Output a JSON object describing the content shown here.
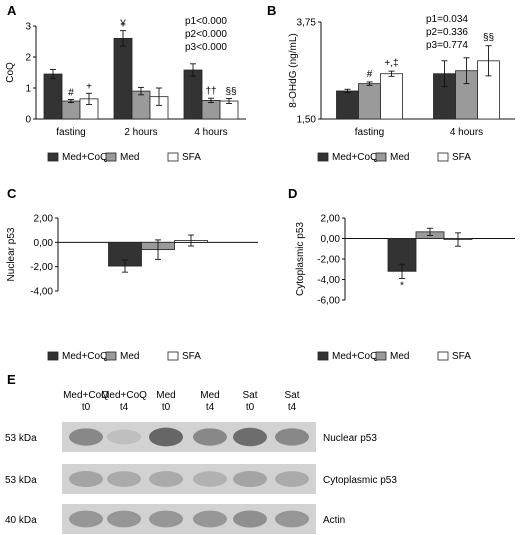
{
  "figure": {
    "letters": {
      "A": "A",
      "B": "B",
      "C": "C",
      "D": "D",
      "E": "E"
    }
  },
  "legend_labels": [
    "Med+CoQ",
    "Med",
    "SFA"
  ],
  "colors": {
    "series": [
      "#333333",
      "#9a9a9a",
      "#ffffff"
    ],
    "stroke": "#222222"
  },
  "chart_data": [
    {
      "panel": "A",
      "type": "bar",
      "categories": [
        "fasting",
        "2 hours",
        "4 hours"
      ],
      "ylabel": "CoQ",
      "ylim": [
        0,
        3
      ],
      "yticks": [
        "0",
        "1",
        "2",
        "3"
      ],
      "series": [
        {
          "name": "Med+CoQ",
          "values": [
            1.45,
            2.6,
            1.58
          ],
          "errors": [
            0.15,
            0.25,
            0.2
          ]
        },
        {
          "name": "Med",
          "values": [
            0.58,
            0.9,
            0.6
          ],
          "errors": [
            0.05,
            0.12,
            0.07
          ]
        },
        {
          "name": "SFA",
          "values": [
            0.65,
            0.72,
            0.58
          ],
          "errors": [
            0.18,
            0.28,
            0.08
          ]
        }
      ],
      "annotations": [
        "#",
        "+",
        "¥",
        "††",
        "§§"
      ],
      "stats": [
        "p1<0.000",
        "p2<0.000",
        "p3<0.000"
      ],
      "grid": false,
      "legend": "bottom"
    },
    {
      "panel": "B",
      "type": "bar",
      "categories": [
        "fasting",
        "4 hours"
      ],
      "ylabel": "8-OHdG (ng/mL)",
      "ylim": [
        1.5,
        3.75
      ],
      "yticks": [
        "1,50",
        "3,75"
      ],
      "series": [
        {
          "name": "Med+CoQ",
          "values": [
            2.15,
            2.55
          ],
          "errors": [
            0.04,
            0.3
          ]
        },
        {
          "name": "Med",
          "values": [
            2.32,
            2.62
          ],
          "errors": [
            0.04,
            0.3
          ]
        },
        {
          "name": "SFA",
          "values": [
            2.55,
            2.85
          ],
          "errors": [
            0.06,
            0.35
          ]
        }
      ],
      "annotations": [
        "#",
        "+,‡",
        "§§"
      ],
      "stats": [
        "p1=0.034",
        "p2=0.336",
        "p3=0.774"
      ],
      "grid": false,
      "legend": "bottom"
    },
    {
      "panel": "C",
      "type": "bar",
      "categories": [
        ""
      ],
      "ylabel": "Nuclear p53",
      "ylim": [
        -4,
        2
      ],
      "yticks": [
        "2,00",
        "0,00",
        "-2,00",
        "-4,00"
      ],
      "series": [
        {
          "name": "Med+CoQ",
          "values": [
            -1.95
          ],
          "errors": [
            0.5
          ]
        },
        {
          "name": "Med",
          "values": [
            -0.6
          ],
          "errors": [
            0.8
          ]
        },
        {
          "name": "SFA",
          "values": [
            0.15
          ],
          "errors": [
            0.45
          ]
        }
      ],
      "annotations": [],
      "grid": false,
      "legend": "bottom"
    },
    {
      "panel": "D",
      "type": "bar",
      "categories": [
        ""
      ],
      "ylabel": "Cytoplasmic p53",
      "ylim": [
        -6,
        2
      ],
      "yticks": [
        "2,00",
        "0,00",
        "-2,00",
        "-4,00",
        "-6,00"
      ],
      "series": [
        {
          "name": "Med+CoQ",
          "values": [
            -3.2
          ],
          "errors": [
            0.7
          ]
        },
        {
          "name": "Med",
          "values": [
            0.65
          ],
          "errors": [
            0.35
          ]
        },
        {
          "name": "SFA",
          "values": [
            -0.1
          ],
          "errors": [
            0.65
          ]
        }
      ],
      "annotations": [
        "*"
      ],
      "grid": false,
      "legend": "bottom"
    }
  ],
  "blot": {
    "lanes": [
      [
        "Med+CoQ",
        "t0"
      ],
      [
        "Med+CoQ",
        "t4"
      ],
      [
        "Med",
        "t0"
      ],
      [
        "Med",
        "t4"
      ],
      [
        "Sat",
        "t0"
      ],
      [
        "Sat",
        "t4"
      ]
    ],
    "rows": [
      {
        "kda": "53 kDa",
        "label": "Nuclear p53",
        "intensity": [
          0.55,
          0.15,
          0.8,
          0.55,
          0.75,
          0.55
        ]
      },
      {
        "kda": "53 kDa",
        "label": "Cytoplasmic  p53",
        "intensity": [
          0.35,
          0.3,
          0.3,
          0.25,
          0.35,
          0.3
        ]
      },
      {
        "kda": "40 kDa",
        "label": "Actin",
        "intensity": [
          0.45,
          0.45,
          0.45,
          0.45,
          0.5,
          0.45
        ]
      }
    ]
  }
}
